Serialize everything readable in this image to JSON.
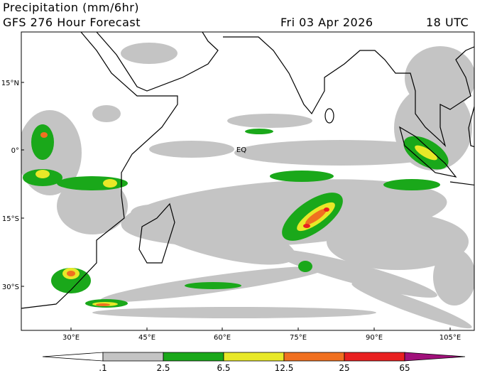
{
  "header": {
    "title": "Precipitation (mm/6hr)",
    "subtitle": "GFS 276 Hour Forecast",
    "date": "Fri 03 Apr 2026",
    "time": "18 UTC"
  },
  "map": {
    "lat_labels": [
      "15°N",
      "0°",
      "15°S",
      "30°S"
    ],
    "lon_labels": [
      "30°E",
      "45°E",
      "60°E",
      "75°E",
      "90°E",
      "105°E"
    ],
    "equator_label": "EQ"
  },
  "colorbar": {
    "labels": [
      ".1",
      "2.5",
      "6.5",
      "12.5",
      "25",
      "65"
    ]
  }
}
